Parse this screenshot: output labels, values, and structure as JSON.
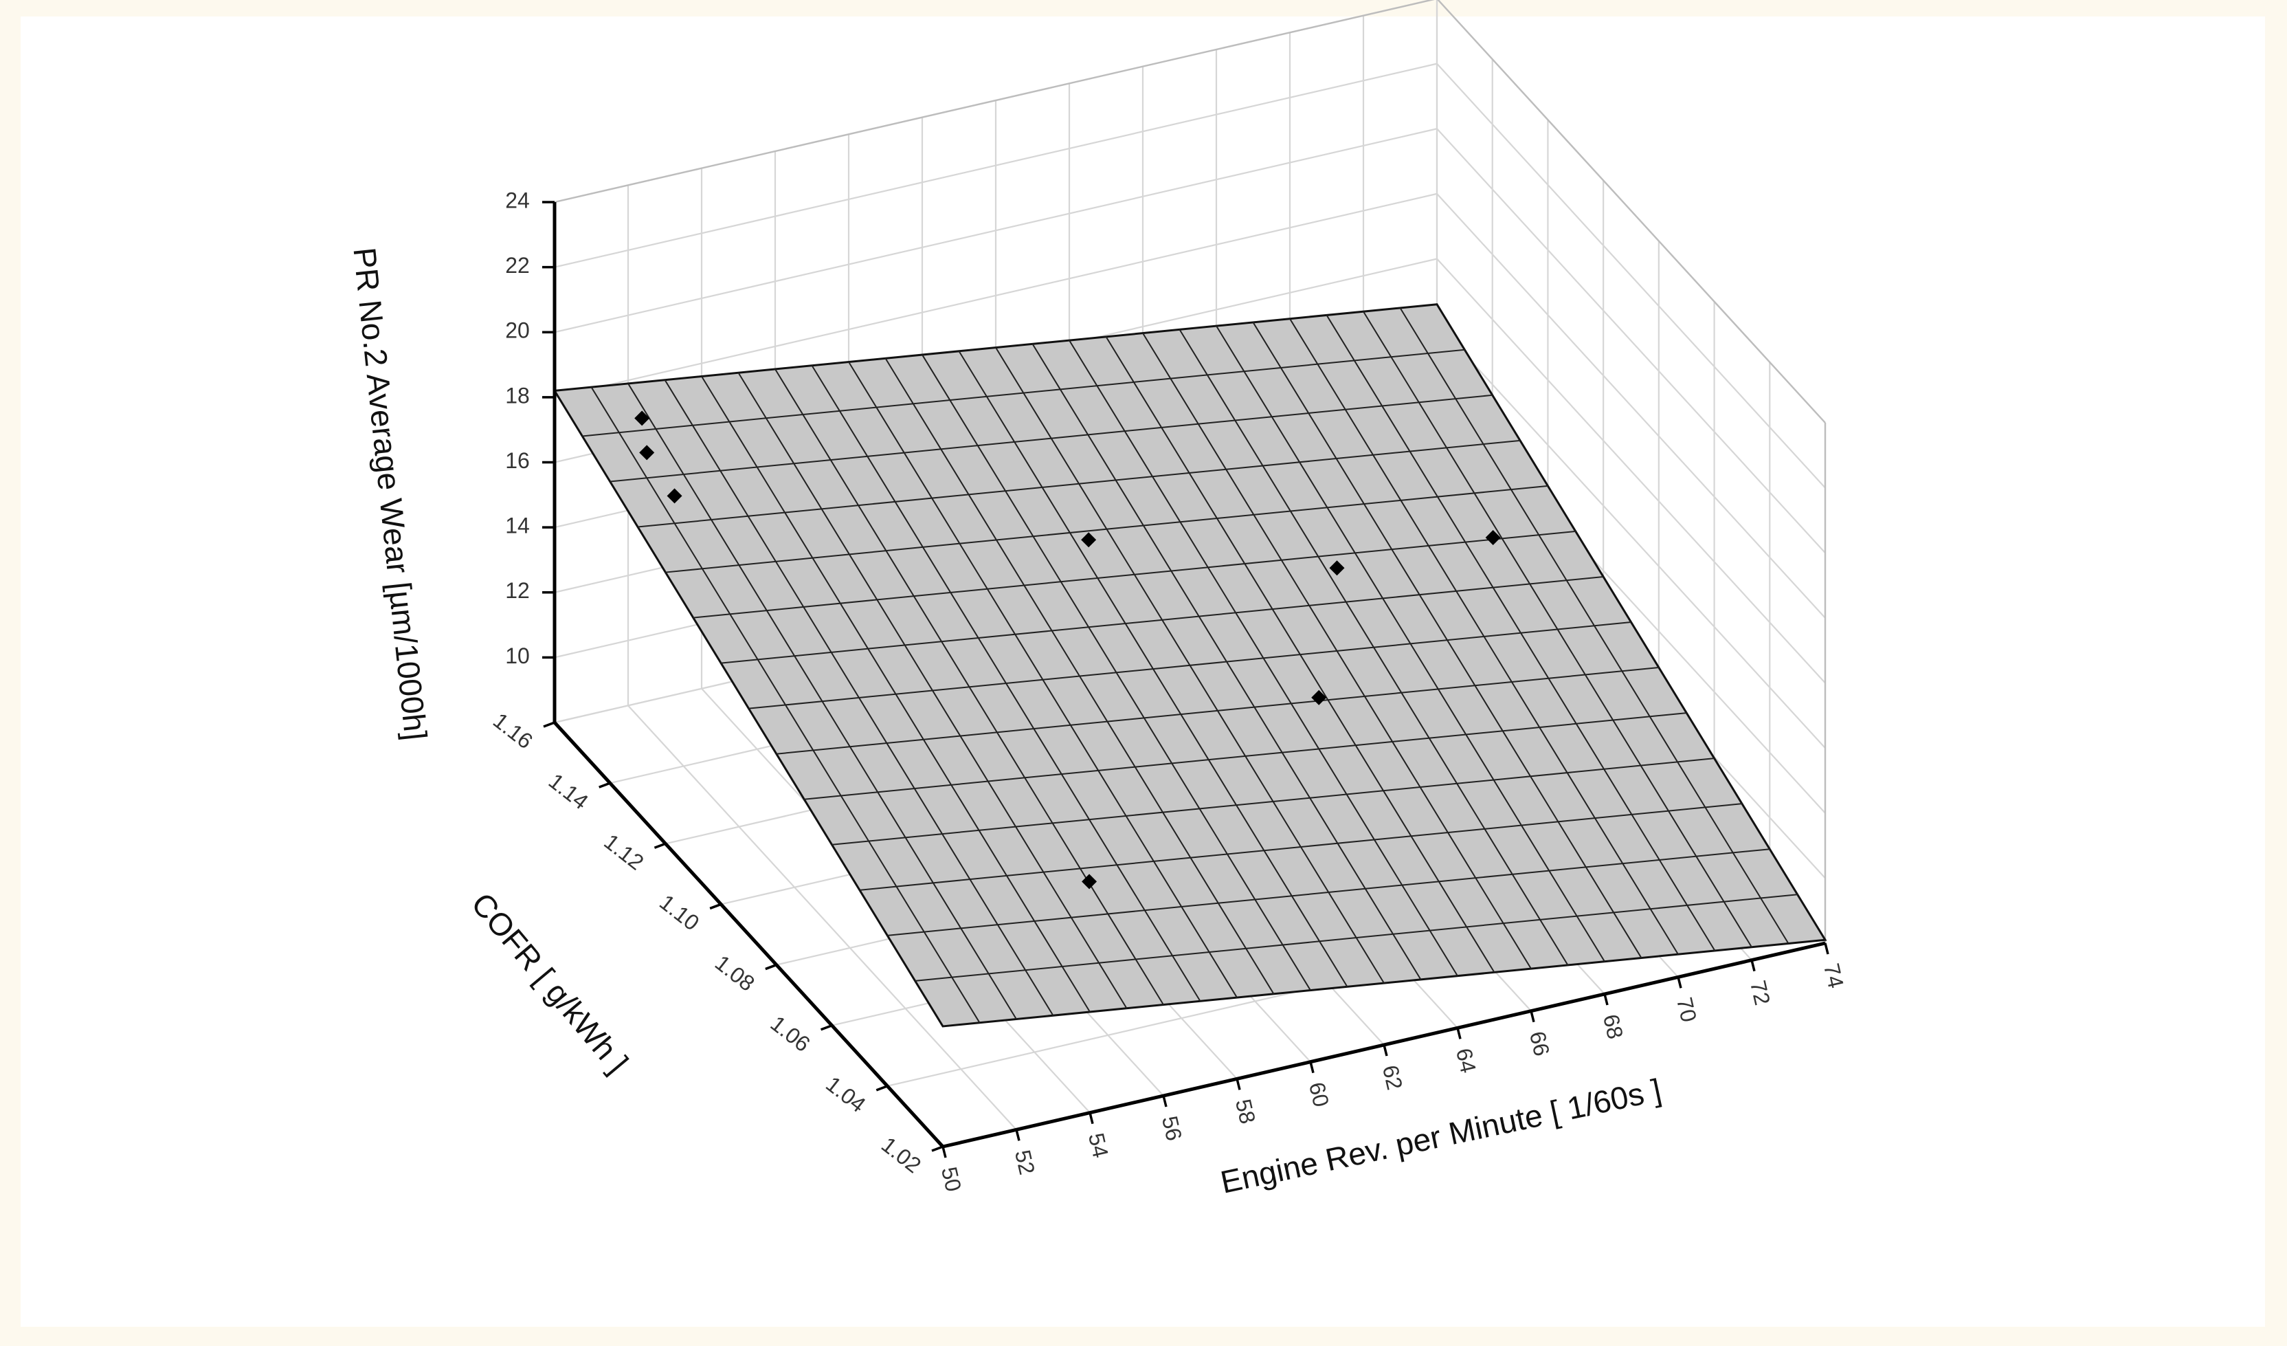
{
  "chart_data": {
    "type": "surface3d",
    "title": "",
    "xlabel": "Engine Rev. per Minute [ 1/60s ]",
    "ylabel": "COFR [ g/kWh ]",
    "zlabel": "PR No.2 Average Wear [µm/1000h]",
    "x_ticks": [
      "50",
      "52",
      "54",
      "56",
      "58",
      "60",
      "62",
      "64",
      "66",
      "68",
      "70",
      "72",
      "74"
    ],
    "y_ticks": [
      "1.02",
      "1.04",
      "1.06",
      "1.08",
      "1.10",
      "1.12",
      "1.14",
      "1.16"
    ],
    "z_ticks": [
      "10",
      "12",
      "14",
      "16",
      "18",
      "20",
      "22",
      "24"
    ],
    "xlim": [
      50,
      74
    ],
    "ylim": [
      1.02,
      1.16
    ],
    "zlim": [
      8,
      24
    ],
    "grid": true,
    "surface": {
      "fit": "plane",
      "corners": [
        {
          "x": 50,
          "y": 1.16,
          "z": 18.2
        },
        {
          "x": 74,
          "y": 1.16,
          "z": 14.6
        },
        {
          "x": 74,
          "y": 1.02,
          "z": 8.1
        },
        {
          "x": 50,
          "y": 1.02,
          "z": 11.7
        }
      ],
      "grid_divisions": [
        24,
        14
      ],
      "color": "#c8c8c8"
    },
    "points": [
      {
        "x": 51,
        "y": 1.14,
        "z": 17.9
      },
      {
        "x": 52,
        "y": 1.155,
        "z": 17.3
      },
      {
        "x": 51,
        "y": 1.13,
        "z": 17.5
      },
      {
        "x": 60,
        "y": 1.1,
        "z": 16.6
      },
      {
        "x": 66,
        "y": 1.09,
        "z": 15.1
      },
      {
        "x": 71,
        "y": 1.1,
        "z": 13.8
      },
      {
        "x": 64,
        "y": 1.07,
        "z": 13.5
      },
      {
        "x": 57,
        "y": 1.06,
        "z": 10.6
      }
    ]
  }
}
